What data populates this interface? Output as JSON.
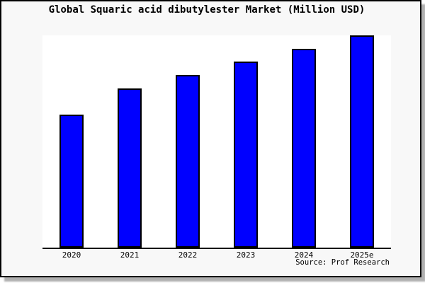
{
  "chart_data": {
    "type": "bar",
    "title": "Global Squaric acid dibutylester Market (Million USD)",
    "categories": [
      "2020",
      "2021",
      "2022",
      "2023",
      "2024",
      "2025e"
    ],
    "values": [
      62.5,
      75,
      81.25,
      87.5,
      93.75,
      100
    ],
    "values_note": "No y-axis, gridlines or data labels are shown in the figure; values are bar heights relative to the tallest bar (2025e = 100).",
    "unit": "Million USD",
    "xlabel": "",
    "ylabel": "",
    "ylim": [
      0,
      100
    ],
    "grid": false,
    "legend": false,
    "source": "Source: Prof Research",
    "colors": {
      "bar_fill": "#0000ff",
      "bar_border": "#000000",
      "plot_background": "#ffffff",
      "figure_background": "#f8f8f8",
      "frame_border": "#000000",
      "shadow": "#b0b0b0",
      "text": "#000000"
    }
  }
}
